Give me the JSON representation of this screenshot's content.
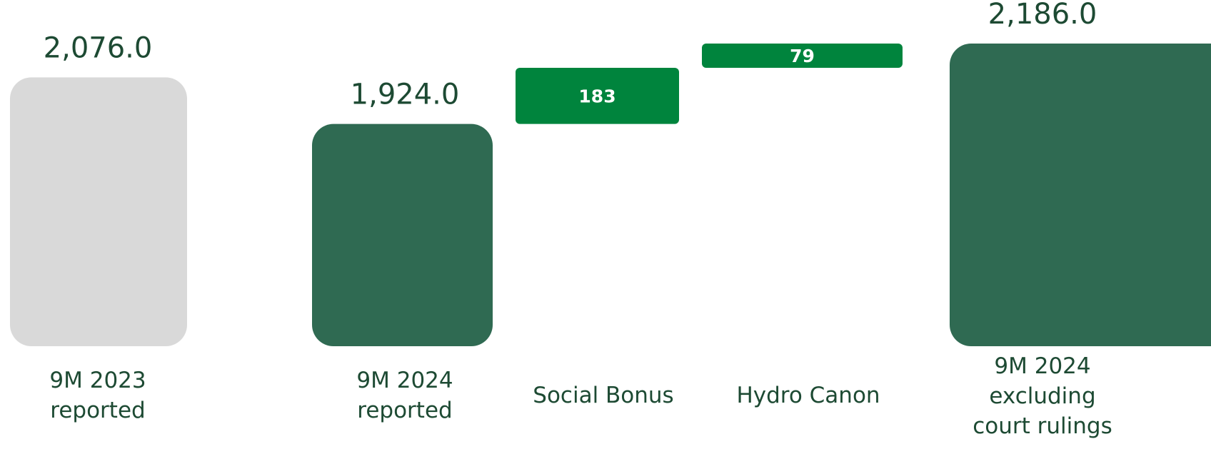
{
  "chart_data": {
    "type": "waterfall",
    "categories": [
      "9M 2023\nreported",
      "9M 2024\nreported",
      "Social Bonus",
      "Hydro Canon",
      "9M 2024\nexcluding\ncourt rulings"
    ],
    "values": [
      2076.0,
      1924.0,
      183,
      79,
      2186.0
    ],
    "value_labels": [
      "2,076.0",
      "1,924.0",
      "183",
      "79",
      "2,186.0"
    ],
    "measure": [
      "absolute",
      "absolute",
      "relative",
      "relative",
      "absolute"
    ],
    "colors": [
      "#d9d9d9",
      "#2f6a52",
      "#00843d",
      "#00843d",
      "#2f6a52"
    ],
    "ylim": [
      1200,
      2200
    ]
  }
}
